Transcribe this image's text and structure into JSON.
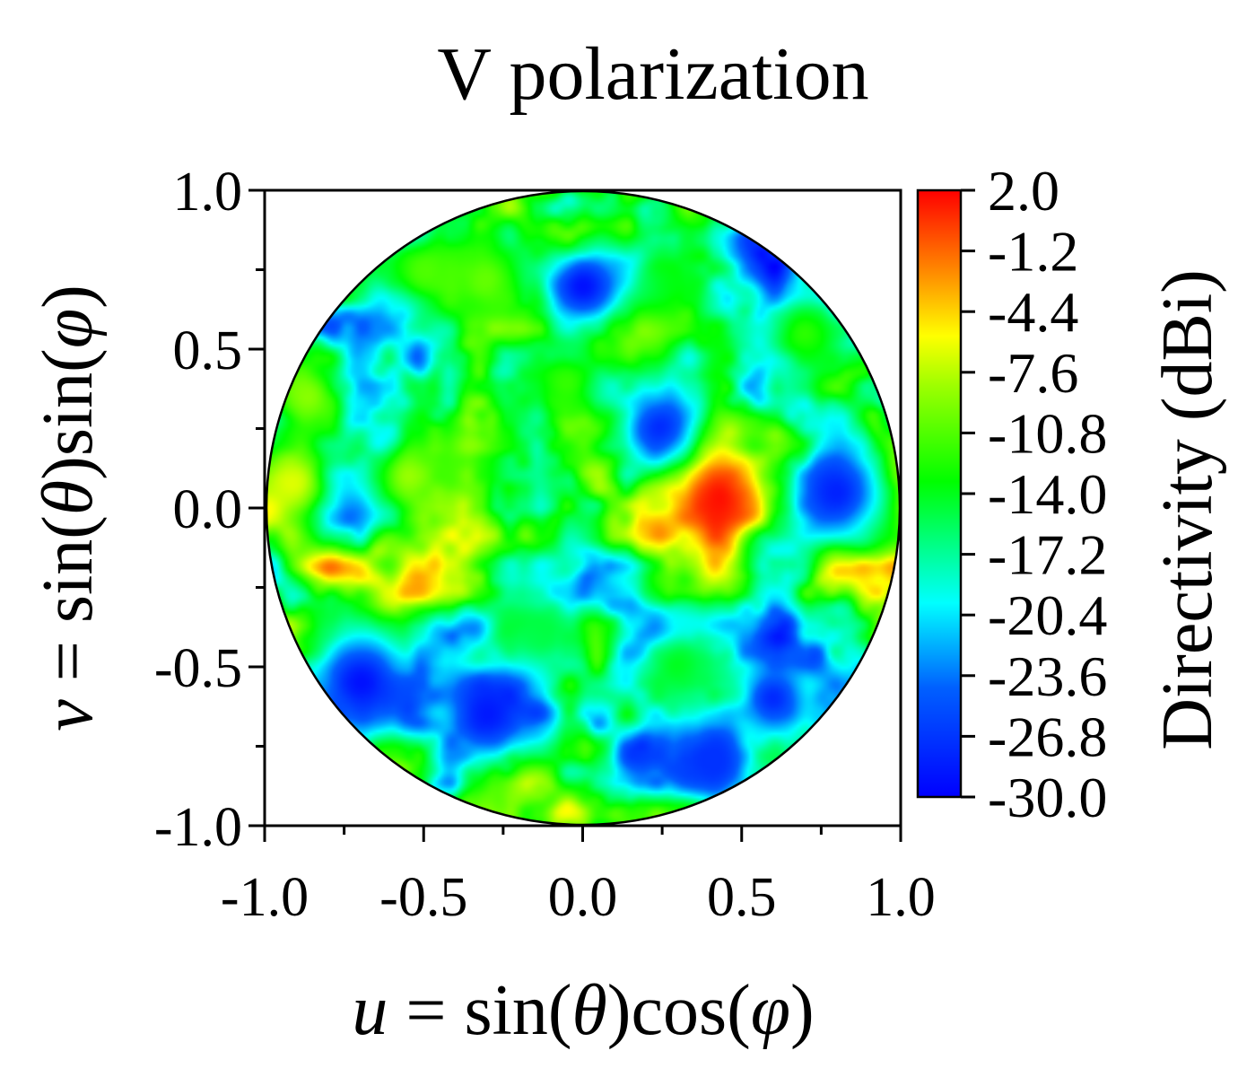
{
  "chart_data": {
    "type": "heatmap",
    "title": "V polarization",
    "xlabel": {
      "pre": "u",
      "eq": " = sin(",
      "theta": "θ",
      "mid": ")cos(",
      "phi": "φ",
      "post": ")"
    },
    "ylabel": {
      "pre": "v",
      "eq": " = sin(",
      "theta": "θ",
      "mid": ")sin(",
      "phi": "φ",
      "post": ")"
    },
    "xlim": [
      -1.0,
      1.0
    ],
    "ylim": [
      -1.0,
      1.0
    ],
    "x_ticks": [
      "-1.0",
      "-0.5",
      "0.0",
      "0.5",
      "1.0"
    ],
    "y_ticks": [
      "1.0",
      "0.5",
      "0.0",
      "-0.5",
      "-1.0"
    ],
    "colorbar": {
      "label": "Directivity (dBi)",
      "range": [
        -30.0,
        2.0
      ],
      "ticks": [
        "2.0",
        "-1.2",
        "-4.4",
        "-7.6",
        "-10.8",
        "-14.0",
        "-17.2",
        "-20.4",
        "-23.6",
        "-26.8",
        "-30.0"
      ]
    },
    "domain": "unit circle u^2 + v^2 <= 1",
    "peak": {
      "u": 0.43,
      "v": 0.03,
      "value": 1.5
    },
    "features": [
      {
        "u": -0.92,
        "v": 0.08,
        "value": -6.5
      },
      {
        "u": -0.87,
        "v": 0.35,
        "value": -9.0
      },
      {
        "u": -0.55,
        "v": 0.1,
        "value": -8.5
      },
      {
        "u": -0.5,
        "v": 0.75,
        "value": -11.0
      },
      {
        "u": -0.3,
        "v": 0.72,
        "value": -10.0
      },
      {
        "u": -0.05,
        "v": 0.4,
        "value": -11.5
      },
      {
        "u": 0.25,
        "v": 0.7,
        "value": -13.5
      },
      {
        "u": 0.7,
        "v": 0.55,
        "value": -12.0
      },
      {
        "u": 0.9,
        "v": 0.0,
        "value": -12.5
      },
      {
        "u": 0.3,
        "v": -0.5,
        "value": -14.0
      },
      {
        "u": -0.15,
        "v": -0.4,
        "value": -15.0
      },
      {
        "u": -0.7,
        "v": -0.45,
        "value": -15.5
      },
      {
        "u": 0.0,
        "v": 0.7,
        "value": -29.0
      },
      {
        "u": 0.25,
        "v": 0.25,
        "value": -28.0
      },
      {
        "u": -0.3,
        "v": -0.65,
        "value": -28.5
      },
      {
        "u": -0.7,
        "v": -0.55,
        "value": -29.0
      },
      {
        "u": 0.4,
        "v": -0.8,
        "value": -27.0
      },
      {
        "u": 0.8,
        "v": 0.05,
        "value": -28.0
      },
      {
        "u": 0.6,
        "v": -0.6,
        "value": -27.5
      }
    ],
    "colors": [
      "#0000ff",
      "#0050ff",
      "#00d8ff",
      "#00ffc8",
      "#00ff00",
      "#a0ff00",
      "#ffff00",
      "#ffa000",
      "#ff5000",
      "#ff0000"
    ]
  }
}
